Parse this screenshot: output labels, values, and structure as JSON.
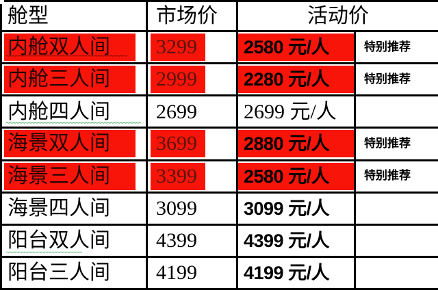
{
  "table": {
    "header": {
      "cabin_type": "舱型",
      "market_price": "市场价",
      "activity_price": "活动价"
    },
    "rows": [
      {
        "cabin": "内舱双人间",
        "market": "3299",
        "activity": "2580 元/人",
        "note": "特别推荐",
        "highlighted": true,
        "bold_activity": true,
        "squiggle": "dark"
      },
      {
        "cabin": "内舱三人间",
        "market": "2999",
        "activity": "2280 元/人",
        "note": "特别推荐",
        "highlighted": true,
        "bold_activity": true,
        "squiggle": null
      },
      {
        "cabin": "内舱四人间",
        "market": "2699",
        "activity": "2699 元/人",
        "note": "",
        "highlighted": false,
        "bold_activity": false,
        "squiggle": "green-wide"
      },
      {
        "cabin": "海景双人间",
        "market": "3699",
        "activity": "2880 元/人",
        "note": "特别推荐",
        "highlighted": true,
        "bold_activity": true,
        "squiggle": null
      },
      {
        "cabin": "海景三人间",
        "market": "3399",
        "activity": "2580 元/人",
        "note": "特别推荐",
        "highlighted": true,
        "bold_activity": true,
        "squiggle": null
      },
      {
        "cabin": "海景四人间",
        "market": "3099",
        "activity": "3099 元/人",
        "note": "",
        "highlighted": false,
        "bold_activity": true,
        "squiggle": null
      },
      {
        "cabin": "阳台双人间",
        "market": "4399",
        "activity": "4399 元/人",
        "note": "",
        "highlighted": false,
        "bold_activity": true,
        "squiggle": "green-short"
      },
      {
        "cabin": "阳台三人间",
        "market": "4199",
        "activity": "4199 元/人",
        "note": "",
        "highlighted": false,
        "bold_activity": true,
        "squiggle": null
      }
    ],
    "colors": {
      "highlight_red": "#f9140a",
      "cabin_text_on_red": "#230503",
      "market_text_on_red": "#5a140c",
      "squiggle_green": "#33a04d",
      "squiggle_dark_red": "#7a0d05",
      "border": "#000000"
    }
  }
}
